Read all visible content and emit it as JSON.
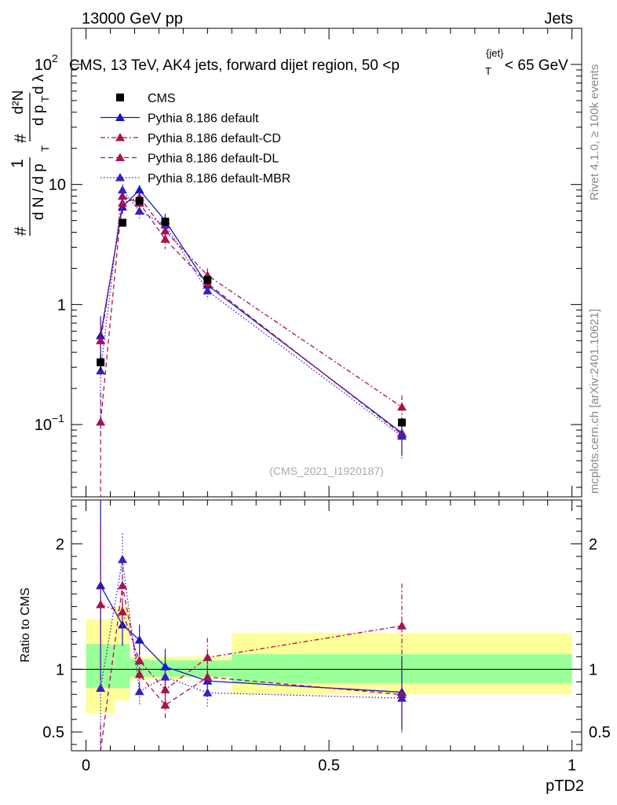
{
  "chart_data": {
    "type": "line",
    "header_left": "13000 GeV pp",
    "header_right": "Jets",
    "title": "CMS, 13 TeV, AK4 jets, forward dijet region, 50 <p_T^{jet}< 65 GeV",
    "title_parts": {
      "main": "CMS, 13 TeV, AK4 jets, forward dijet region, 50 <p",
      "sub": "T",
      "sup": "{jet}",
      "end": "< 65 GeV"
    },
    "ylabel": "1/N dN/dp_T d^2N/dp_T dλ",
    "ylabel_parts": {
      "one": "1",
      "hash1": "#",
      "denominator": "d N / d p",
      "sub1": "T",
      "dsquareN": "d²N",
      "hash2": "#",
      "dpt": "d p",
      "sub2": "T",
      "dlambda": "d λ"
    },
    "ratio_ylabel": "Ratio to CMS",
    "xlabel": "pTD2",
    "analysis_label": "(CMS_2021_I1920187)",
    "side_label_1": "Rivet 4.1.0, ≥ 100k events",
    "side_label_2": "mcplots.cern.ch [arXiv:2401.10621]",
    "xlim": [
      -0.03,
      1.02
    ],
    "ylim_log": [
      0.025,
      200
    ],
    "ratio_ylim": [
      0.35,
      2.35
    ],
    "x_ticks": [
      {
        "v": 0,
        "label": "0"
      },
      {
        "v": 0.5,
        "label": "0.5"
      },
      {
        "v": 1,
        "label": "1"
      }
    ],
    "y_ticks": [
      {
        "v": 0.1,
        "label": "10",
        "sup": "−1"
      },
      {
        "v": 1,
        "label": "1",
        "sup": ""
      },
      {
        "v": 10,
        "label": "10",
        "sup": ""
      },
      {
        "v": 100,
        "label": "10",
        "sup": "2"
      }
    ],
    "ratio_ticks": [
      {
        "v": 0.5,
        "label": "0.5"
      },
      {
        "v": 1,
        "label": "1"
      },
      {
        "v": 2,
        "label": "2"
      }
    ],
    "bins": [
      0,
      0.06,
      0.09,
      0.13,
      0.2,
      0.3,
      1.0
    ],
    "x": [
      0.03,
      0.075,
      0.11,
      0.163,
      0.25,
      0.65
    ],
    "cms": {
      "name": "CMS",
      "values": [
        0.33,
        4.8,
        7.3,
        4.9,
        1.6,
        0.104
      ],
      "errors": [
        0.05,
        0.3,
        0.4,
        0.3,
        0.1,
        0.008
      ],
      "band_inner": [
        [
          0.85,
          1.2
        ],
        [
          0.85,
          1.2
        ],
        [
          0.94,
          1.08
        ],
        [
          0.94,
          1.07
        ],
        [
          0.94,
          1.07
        ],
        [
          0.89,
          1.12
        ]
      ],
      "band_outer": [
        [
          0.65,
          1.4
        ],
        [
          0.75,
          1.5
        ],
        [
          0.92,
          1.1
        ],
        [
          0.92,
          1.1
        ],
        [
          0.93,
          1.1
        ],
        [
          0.8,
          1.29
        ]
      ]
    },
    "series": [
      {
        "name": "Pythia 8.186 default",
        "color": "#1515cc",
        "dash": "",
        "values": [
          0.55,
          6.5,
          9.0,
          5.0,
          1.45,
          0.085
        ],
        "errors": [
          0.25,
          0.8,
          0.9,
          0.7,
          0.2,
          0.03
        ]
      },
      {
        "name": "Pythia 8.186 default-CD",
        "color": "#aa1150",
        "dash": "6,3,2,3",
        "values": [
          0.5,
          7.0,
          7.8,
          4.1,
          1.75,
          0.14
        ],
        "errors": [
          0.22,
          0.8,
          0.9,
          0.7,
          0.25,
          0.035
        ]
      },
      {
        "name": "Pythia 8.186 default-DL",
        "color": "#aa1150",
        "dash": "6,4",
        "values": [
          0.105,
          8.0,
          7.0,
          3.5,
          1.5,
          0.083
        ],
        "errors": [
          0.08,
          1.0,
          0.9,
          0.6,
          0.25,
          0.03
        ]
      },
      {
        "name": "Pythia 8.186 default-MBR",
        "color": "#3a20c0",
        "dash": "1.5,2.5",
        "values": [
          0.28,
          9.0,
          6.0,
          4.6,
          1.3,
          0.08
        ],
        "errors": [
          0.2,
          1.0,
          0.8,
          0.7,
          0.2,
          0.03
        ]
      }
    ],
    "legend_position": "top-left"
  }
}
